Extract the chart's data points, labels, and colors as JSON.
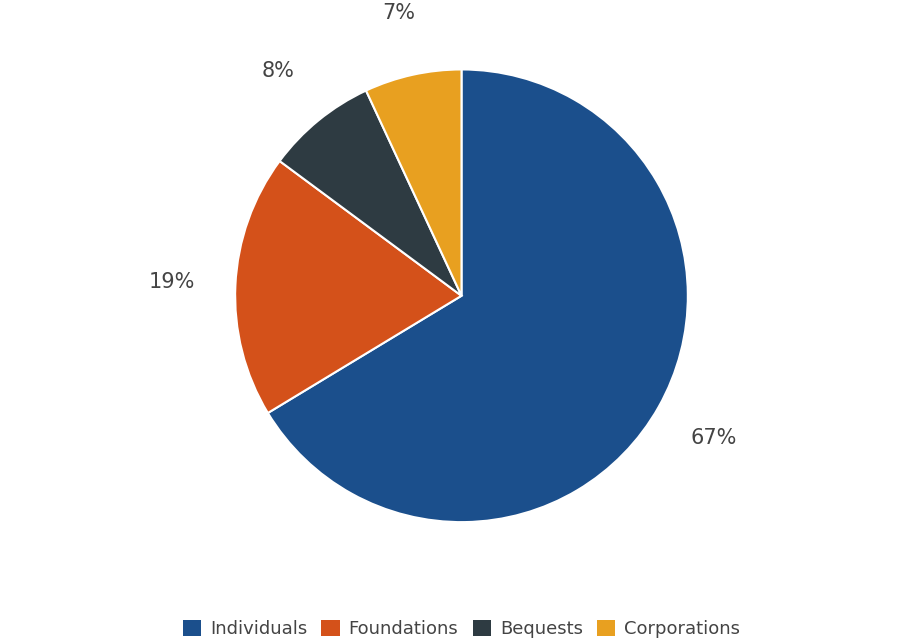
{
  "labels": [
    "Individuals",
    "Foundations",
    "Bequests",
    "Corporations"
  ],
  "values": [
    67,
    19,
    8,
    7
  ],
  "colors": [
    "#1b4f8c",
    "#d4511a",
    "#2e3b42",
    "#e8a020"
  ],
  "pct_labels": [
    "67%",
    "19%",
    "8%",
    "7%"
  ],
  "legend_labels": [
    "Individuals",
    "Foundations",
    "Bequests",
    "Corporations"
  ],
  "startangle": 90,
  "background_color": "#ffffff",
  "label_fontsize": 15,
  "legend_fontsize": 13,
  "edge_color": "white",
  "edge_width": 1.5,
  "label_color": "#444444"
}
